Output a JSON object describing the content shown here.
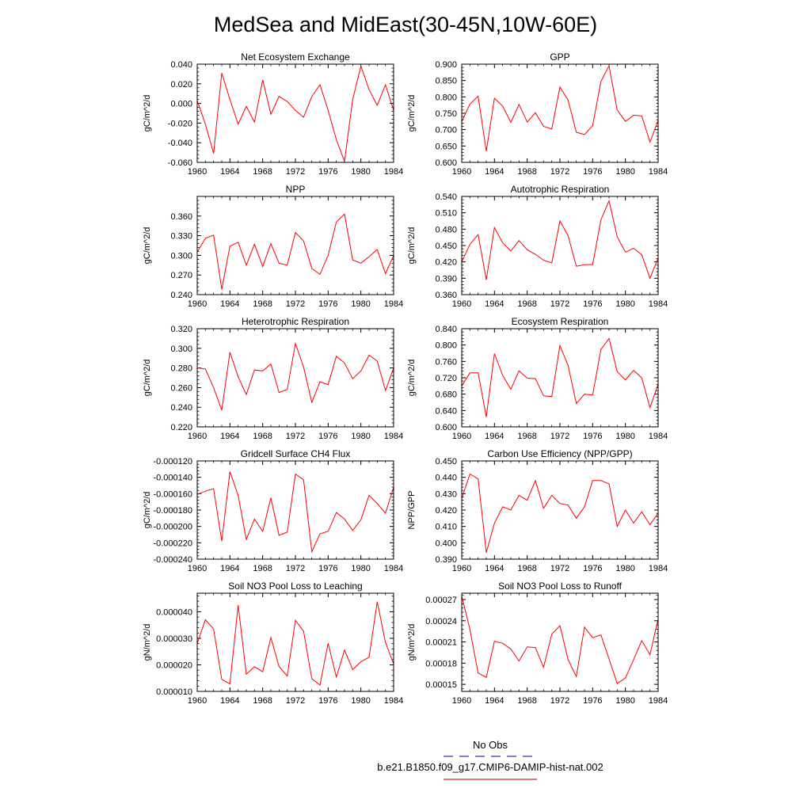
{
  "figure": {
    "title": "MedSea and MidEast(30-45N,10W-60E)"
  },
  "legend": {
    "entries": [
      {
        "label": "No Obs",
        "color": "#3333cc",
        "style": "dashed"
      },
      {
        "label": "b.e21.B1850.f09_g17.CMIP6-DAMIP-hist-nat.002",
        "color": "#dd2222",
        "style": "solid"
      }
    ]
  },
  "colors": {
    "series": "#ff0000",
    "axis": "#000000"
  },
  "chart_data": [
    {
      "type": "line",
      "title": "Net Ecosystem Exchange",
      "ylabel": "gC/m^2/d",
      "xlim": [
        1960,
        1984
      ],
      "ylim": [
        -0.06,
        0.04
      ],
      "xticks": [
        1960,
        1964,
        1968,
        1972,
        1976,
        1980,
        1984
      ],
      "xtick_labels": [
        "1960",
        "1964",
        "1968",
        "1972",
        "1976",
        "1980",
        "1984"
      ],
      "yticks": [
        -0.06,
        -0.04,
        -0.02,
        0.0,
        0.02,
        0.04
      ],
      "ytick_labels": [
        "-0.060",
        "-0.040",
        "-0.020",
        "0.000",
        "0.020",
        "0.040"
      ],
      "x": [
        1960,
        1961,
        1962,
        1963,
        1964,
        1965,
        1966,
        1967,
        1968,
        1969,
        1970,
        1971,
        1972,
        1973,
        1974,
        1975,
        1976,
        1977,
        1978,
        1979,
        1980,
        1981,
        1982,
        1983,
        1984
      ],
      "values": [
        0.003,
        -0.021,
        -0.051,
        0.031,
        0.004,
        -0.021,
        -0.003,
        -0.019,
        0.024,
        -0.011,
        0.007,
        0.002,
        -0.007,
        -0.014,
        0.007,
        0.019,
        -0.007,
        -0.037,
        -0.059,
        0.004,
        0.038,
        0.014,
        -0.002,
        0.019,
        -0.007
      ]
    },
    {
      "type": "line",
      "title": "GPP",
      "ylabel": "gC/m^2/d",
      "xlim": [
        1960,
        1984
      ],
      "ylim": [
        0.6,
        0.9
      ],
      "xticks": [
        1960,
        1964,
        1968,
        1972,
        1976,
        1980,
        1984
      ],
      "xtick_labels": [
        "1960",
        "1964",
        "1968",
        "1972",
        "1976",
        "1980",
        "1984"
      ],
      "yticks": [
        0.6,
        0.65,
        0.7,
        0.75,
        0.8,
        0.85,
        0.9
      ],
      "ytick_labels": [
        "0.600",
        "0.650",
        "0.700",
        "0.750",
        "0.800",
        "0.850",
        "0.900"
      ],
      "x": [
        1960,
        1961,
        1962,
        1963,
        1964,
        1965,
        1966,
        1967,
        1968,
        1969,
        1970,
        1971,
        1972,
        1973,
        1974,
        1975,
        1976,
        1977,
        1978,
        1979,
        1980,
        1981,
        1982,
        1983,
        1984
      ],
      "values": [
        0.724,
        0.778,
        0.802,
        0.634,
        0.796,
        0.772,
        0.722,
        0.777,
        0.723,
        0.752,
        0.71,
        0.702,
        0.83,
        0.79,
        0.692,
        0.685,
        0.712,
        0.847,
        0.895,
        0.76,
        0.725,
        0.744,
        0.742,
        0.662,
        0.728
      ]
    },
    {
      "type": "line",
      "title": "NPP",
      "ylabel": "gC/m^2/d",
      "xlim": [
        1960,
        1984
      ],
      "ylim": [
        0.24,
        0.39
      ],
      "xticks": [
        1960,
        1964,
        1968,
        1972,
        1976,
        1980,
        1984
      ],
      "xtick_labels": [
        "1960",
        "1964",
        "1968",
        "1972",
        "1976",
        "1980",
        "1984"
      ],
      "yticks": [
        0.24,
        0.27,
        0.3,
        0.33,
        0.36
      ],
      "ytick_labels": [
        "0.240",
        "0.270",
        "0.300",
        "0.330",
        "0.360"
      ],
      "x": [
        1960,
        1961,
        1962,
        1963,
        1964,
        1965,
        1966,
        1967,
        1968,
        1969,
        1970,
        1971,
        1972,
        1973,
        1974,
        1975,
        1976,
        1977,
        1978,
        1979,
        1980,
        1981,
        1982,
        1983,
        1984
      ],
      "values": [
        0.305,
        0.326,
        0.331,
        0.248,
        0.314,
        0.32,
        0.285,
        0.317,
        0.283,
        0.318,
        0.288,
        0.285,
        0.335,
        0.322,
        0.28,
        0.271,
        0.3,
        0.351,
        0.363,
        0.293,
        0.288,
        0.298,
        0.309,
        0.272,
        0.3
      ]
    },
    {
      "type": "line",
      "title": "Autotrophic Respiration",
      "ylabel": "gC/m^2/d",
      "xlim": [
        1960,
        1984
      ],
      "ylim": [
        0.36,
        0.54
      ],
      "xticks": [
        1960,
        1964,
        1968,
        1972,
        1976,
        1980,
        1984
      ],
      "xtick_labels": [
        "1960",
        "1964",
        "1968",
        "1972",
        "1976",
        "1980",
        "1984"
      ],
      "yticks": [
        0.36,
        0.39,
        0.42,
        0.45,
        0.48,
        0.51,
        0.54
      ],
      "ytick_labels": [
        "0.360",
        "0.390",
        "0.420",
        "0.450",
        "0.480",
        "0.510",
        "0.540"
      ],
      "x": [
        1960,
        1961,
        1962,
        1963,
        1964,
        1965,
        1966,
        1967,
        1968,
        1969,
        1970,
        1971,
        1972,
        1973,
        1974,
        1975,
        1976,
        1977,
        1978,
        1979,
        1980,
        1981,
        1982,
        1983,
        1984
      ],
      "values": [
        0.42,
        0.452,
        0.47,
        0.387,
        0.483,
        0.455,
        0.44,
        0.459,
        0.442,
        0.434,
        0.423,
        0.418,
        0.495,
        0.468,
        0.412,
        0.415,
        0.415,
        0.497,
        0.532,
        0.466,
        0.438,
        0.445,
        0.433,
        0.39,
        0.427
      ]
    },
    {
      "type": "line",
      "title": "Heterotrophic Respiration",
      "ylabel": "gC/m^2/d",
      "xlim": [
        1960,
        1984
      ],
      "ylim": [
        0.22,
        0.32
      ],
      "xticks": [
        1960,
        1964,
        1968,
        1972,
        1976,
        1980,
        1984
      ],
      "xtick_labels": [
        "1960",
        "1964",
        "1968",
        "1972",
        "1976",
        "1980",
        "1984"
      ],
      "yticks": [
        0.22,
        0.24,
        0.26,
        0.28,
        0.3,
        0.32
      ],
      "ytick_labels": [
        "0.220",
        "0.240",
        "0.260",
        "0.280",
        "0.300",
        "0.320"
      ],
      "x": [
        1960,
        1961,
        1962,
        1963,
        1964,
        1965,
        1966,
        1967,
        1968,
        1969,
        1970,
        1971,
        1972,
        1973,
        1974,
        1975,
        1976,
        1977,
        1978,
        1979,
        1980,
        1981,
        1982,
        1983,
        1984
      ],
      "values": [
        0.28,
        0.279,
        0.26,
        0.237,
        0.296,
        0.271,
        0.253,
        0.278,
        0.277,
        0.284,
        0.255,
        0.258,
        0.305,
        0.281,
        0.245,
        0.266,
        0.263,
        0.292,
        0.285,
        0.269,
        0.277,
        0.293,
        0.287,
        0.257,
        0.28
      ]
    },
    {
      "type": "line",
      "title": "Ecosystem Respiration",
      "ylabel": "gC/m^2/d",
      "xlim": [
        1960,
        1984
      ],
      "ylim": [
        0.6,
        0.84
      ],
      "xticks": [
        1960,
        1964,
        1968,
        1972,
        1976,
        1980,
        1984
      ],
      "xtick_labels": [
        "1960",
        "1964",
        "1968",
        "1972",
        "1976",
        "1980",
        "1984"
      ],
      "yticks": [
        0.6,
        0.64,
        0.68,
        0.72,
        0.76,
        0.8,
        0.84
      ],
      "ytick_labels": [
        "0.600",
        "0.640",
        "0.680",
        "0.720",
        "0.760",
        "0.800",
        "0.840"
      ],
      "x": [
        1960,
        1961,
        1962,
        1963,
        1964,
        1965,
        1966,
        1967,
        1968,
        1969,
        1970,
        1971,
        1972,
        1973,
        1974,
        1975,
        1976,
        1977,
        1978,
        1979,
        1980,
        1981,
        1982,
        1983,
        1984
      ],
      "values": [
        0.7,
        0.732,
        0.732,
        0.624,
        0.779,
        0.726,
        0.692,
        0.737,
        0.719,
        0.718,
        0.676,
        0.674,
        0.799,
        0.75,
        0.657,
        0.68,
        0.678,
        0.789,
        0.816,
        0.735,
        0.715,
        0.738,
        0.72,
        0.647,
        0.705
      ]
    },
    {
      "type": "line",
      "title": "Gridcell Surface CH4 Flux",
      "ylabel": "gC/m^2/d",
      "xlim": [
        1960,
        1984
      ],
      "ylim": [
        -0.00024,
        -0.00012
      ],
      "xticks": [
        1960,
        1964,
        1968,
        1972,
        1976,
        1980,
        1984
      ],
      "xtick_labels": [
        "1960",
        "1964",
        "1968",
        "1972",
        "1976",
        "1980",
        "1984"
      ],
      "yticks": [
        -0.00024,
        -0.00022,
        -0.0002,
        -0.00018,
        -0.00016,
        -0.00014,
        -0.00012
      ],
      "ytick_labels": [
        "-0.000240",
        "-0.000220",
        "-0.000200",
        "-0.000180",
        "-0.000160",
        "-0.000140",
        "-0.000120"
      ],
      "x": [
        1960,
        1961,
        1962,
        1963,
        1964,
        1965,
        1966,
        1967,
        1968,
        1969,
        1970,
        1971,
        1972,
        1973,
        1974,
        1975,
        1976,
        1977,
        1978,
        1979,
        1980,
        1981,
        1982,
        1983,
        1984
      ],
      "values": [
        -0.000161,
        -0.000157,
        -0.000154,
        -0.000218,
        -0.000133,
        -0.000162,
        -0.000216,
        -0.000191,
        -0.000206,
        -0.000165,
        -0.000211,
        -0.000207,
        -0.000136,
        -0.000143,
        -0.000231,
        -0.000209,
        -0.000206,
        -0.000183,
        -0.000191,
        -0.000205,
        -0.000192,
        -0.000162,
        -0.000172,
        -0.000184,
        -0.000152
      ]
    },
    {
      "type": "line",
      "title": "Carbon Use Efficiency (NPP/GPP)",
      "ylabel": "NPP/GPP",
      "xlim": [
        1960,
        1984
      ],
      "ylim": [
        0.39,
        0.45
      ],
      "xticks": [
        1960,
        1964,
        1968,
        1972,
        1976,
        1980,
        1984
      ],
      "xtick_labels": [
        "1960",
        "1964",
        "1968",
        "1972",
        "1976",
        "1980",
        "1984"
      ],
      "yticks": [
        0.39,
        0.4,
        0.41,
        0.42,
        0.43,
        0.44,
        0.45
      ],
      "ytick_labels": [
        "0.390",
        "0.400",
        "0.410",
        "0.420",
        "0.430",
        "0.440",
        "0.450"
      ],
      "x": [
        1960,
        1961,
        1962,
        1963,
        1964,
        1965,
        1966,
        1967,
        1968,
        1969,
        1970,
        1971,
        1972,
        1973,
        1974,
        1975,
        1976,
        1977,
        1978,
        1979,
        1980,
        1981,
        1982,
        1983,
        1984
      ],
      "values": [
        0.427,
        0.442,
        0.439,
        0.394,
        0.412,
        0.422,
        0.42,
        0.429,
        0.426,
        0.438,
        0.421,
        0.429,
        0.424,
        0.423,
        0.415,
        0.422,
        0.438,
        0.438,
        0.436,
        0.41,
        0.42,
        0.412,
        0.419,
        0.411,
        0.418
      ]
    },
    {
      "type": "line",
      "title": "Soil NO3 Pool Loss to Leaching",
      "ylabel": "gN/m^2/d",
      "xlim": [
        1960,
        1984
      ],
      "ylim": [
        1e-05,
        4.7e-05
      ],
      "xticks": [
        1960,
        1964,
        1968,
        1972,
        1976,
        1980,
        1984
      ],
      "xtick_labels": [
        "1960",
        "1964",
        "1968",
        "1972",
        "1976",
        "1980",
        "1984"
      ],
      "yticks": [
        1e-05,
        2e-05,
        3e-05,
        4e-05
      ],
      "ytick_labels": [
        "0.000010",
        "0.000020",
        "0.000030",
        "0.000040"
      ],
      "x": [
        1960,
        1961,
        1962,
        1963,
        1964,
        1965,
        1966,
        1967,
        1968,
        1969,
        1970,
        1971,
        1972,
        1973,
        1974,
        1975,
        1976,
        1977,
        1978,
        1979,
        1980,
        1981,
        1982,
        1983,
        1984
      ],
      "values": [
        2.8e-05,
        3.7e-05,
        3.35e-05,
        1.45e-05,
        1.28e-05,
        4.25e-05,
        1.65e-05,
        1.93e-05,
        1.74e-05,
        3.03e-05,
        1.94e-05,
        1.58e-05,
        3.68e-05,
        3.27e-05,
        1.48e-05,
        1.24e-05,
        2.81e-05,
        1.54e-05,
        2.56e-05,
        1.82e-05,
        2.12e-05,
        2.29e-05,
        4.38e-05,
        2.85e-05,
        2.03e-05
      ]
    },
    {
      "type": "line",
      "title": "Soil NO3 Pool Loss to Runoff",
      "ylabel": "gN/m^2/d",
      "xlim": [
        1960,
        1984
      ],
      "ylim": [
        0.00014,
        0.000279
      ],
      "xticks": [
        1960,
        1964,
        1968,
        1972,
        1976,
        1980,
        1984
      ],
      "xtick_labels": [
        "1960",
        "1964",
        "1968",
        "1972",
        "1976",
        "1980",
        "1984"
      ],
      "yticks": [
        0.00015,
        0.00018,
        0.00021,
        0.00024,
        0.00027
      ],
      "ytick_labels": [
        "0.00015",
        "0.00018",
        "0.00021",
        "0.00024",
        "0.00027"
      ],
      "x": [
        1960,
        1961,
        1962,
        1963,
        1964,
        1965,
        1966,
        1967,
        1968,
        1969,
        1970,
        1971,
        1972,
        1973,
        1974,
        1975,
        1976,
        1977,
        1978,
        1979,
        1980,
        1981,
        1982,
        1983,
        1984
      ],
      "values": [
        0.000275,
        0.000228,
        0.000166,
        0.00016,
        0.000211,
        0.000208,
        0.0002,
        0.000183,
        0.000203,
        0.000202,
        0.000174,
        0.000221,
        0.000233,
        0.000185,
        0.000161,
        0.000231,
        0.000216,
        0.00022,
        0.000186,
        0.000151,
        0.000159,
        0.000185,
        0.000212,
        0.000192,
        0.000243
      ]
    }
  ]
}
